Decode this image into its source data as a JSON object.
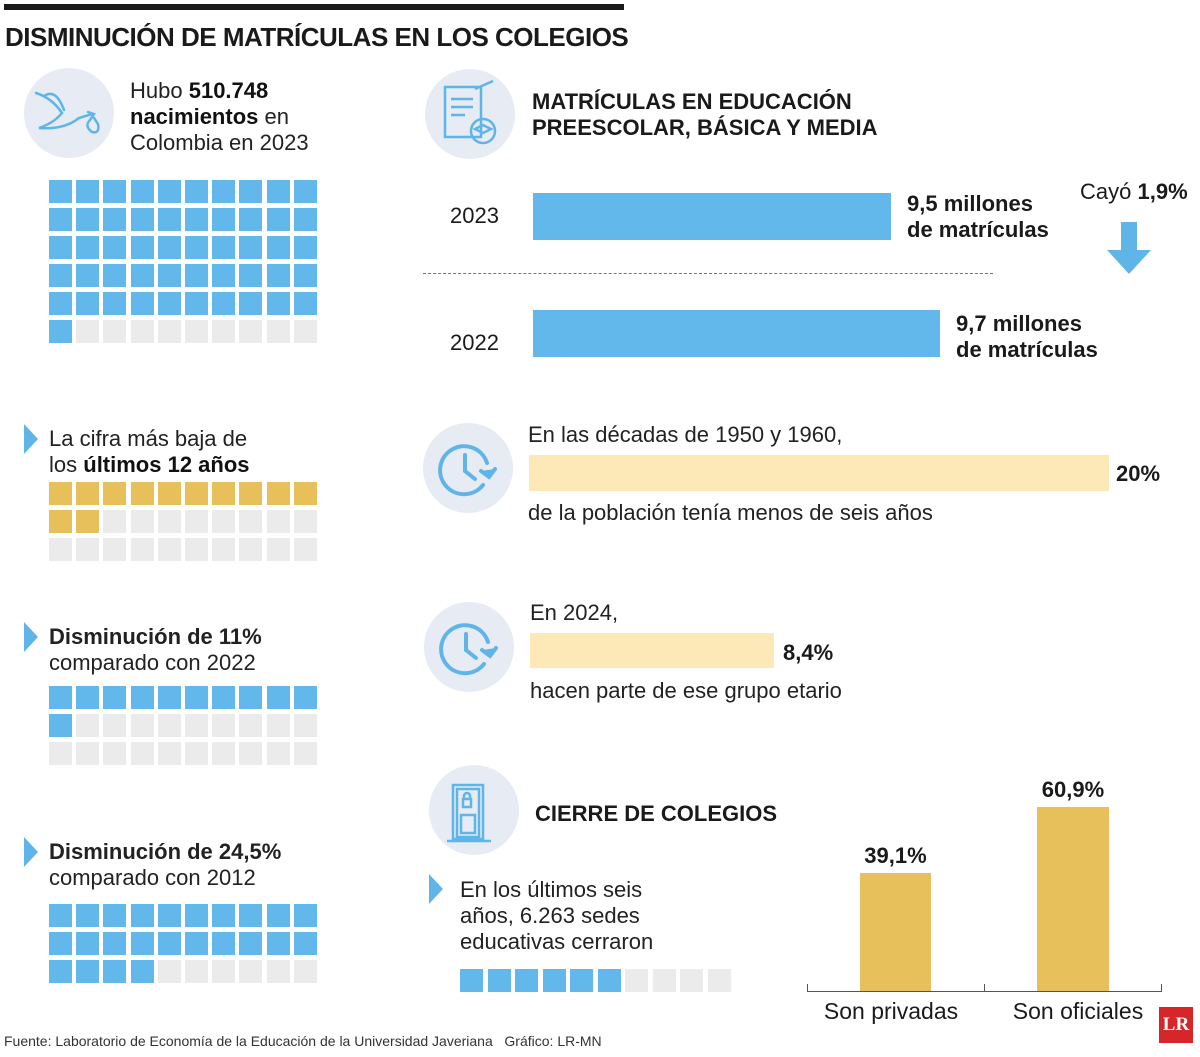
{
  "title": "DISMINUCIÓN DE MATRÍCULAS EN LOS COLEGIOS",
  "colors": {
    "blue": "#62b8ea",
    "gold": "#e8c05b",
    "cream": "#fde8b8",
    "empty": "#ebebeb",
    "icon_bg": "#e6ebf4"
  },
  "births": {
    "pre": "Hubo ",
    "num": "510.748",
    "line2b": "nacimientos",
    "line2": " en",
    "line3": "Colombia en 2023",
    "icon": "stork-icon"
  },
  "low": {
    "line1": "La cifra más baja de",
    "line2a": "los ",
    "line2b": "últimos 12 años"
  },
  "dec11": {
    "line1": "Disminución de 11%",
    "line2": "comparado con 2022"
  },
  "dec24": {
    "line1": "Disminución de 24,5%",
    "line2": "comparado con 2012"
  },
  "waffles": [
    {
      "cells": 60,
      "filled": 51,
      "color": "blue"
    },
    {
      "cells": 30,
      "filled": 12,
      "color": "gold"
    },
    {
      "cells": 30,
      "filled": 11,
      "color": "blue"
    },
    {
      "cells": 30,
      "filled": 24,
      "color": "blue"
    },
    {
      "cells": 10,
      "filled": 6,
      "color": "blue"
    }
  ],
  "enrollment": {
    "title1": "MATRÍCULAS EN EDUCACIÓN",
    "title2": "PREESCOLAR, BÁSICA Y MEDIA",
    "icon": "book-graduation-icon",
    "drop_pre": "Cayó ",
    "drop_val": "1,9%",
    "drop_icon": "arrow-down-icon"
  },
  "chart_data": [
    {
      "type": "bar",
      "orientation": "horizontal",
      "categories": [
        "2023",
        "2022"
      ],
      "values": [
        9.5,
        9.7
      ],
      "unit": "millones de matrículas",
      "labels": [
        [
          "9,5 millones",
          "de matrículas"
        ],
        [
          "9,7 millones",
          "de matrículas"
        ]
      ]
    },
    {
      "type": "bar",
      "orientation": "horizontal",
      "categories": [
        "1950-1960",
        "2024"
      ],
      "values": [
        20,
        8.4
      ],
      "labels": [
        "20%",
        "8,4%"
      ]
    },
    {
      "type": "bar",
      "orientation": "vertical",
      "categories": [
        "Son privadas",
        "Son oficiales"
      ],
      "values": [
        39.1,
        60.9
      ],
      "labels": [
        "39,1%",
        "60,9%"
      ]
    }
  ],
  "pop1": {
    "top": "En las décadas de 1950 y 1960,",
    "bottom": "de la población tenía menos de seis años",
    "icon": "clock-icon"
  },
  "pop2": {
    "top": "En 2024,",
    "bottom": "hacen parte de ese grupo etario",
    "icon": "clock-icon"
  },
  "schools": {
    "title": "CIERRE DE COLEGIOS",
    "icon": "locked-door-icon",
    "line1": "En los últimos seis",
    "line2": "años, 6.263 sedes",
    "line3": "educativas cerraron"
  },
  "footer": "Fuente: Laboratorio de Economía de la Educación de la Universidad Javeriana   Gráfico: LR-MN",
  "logo": "LR"
}
